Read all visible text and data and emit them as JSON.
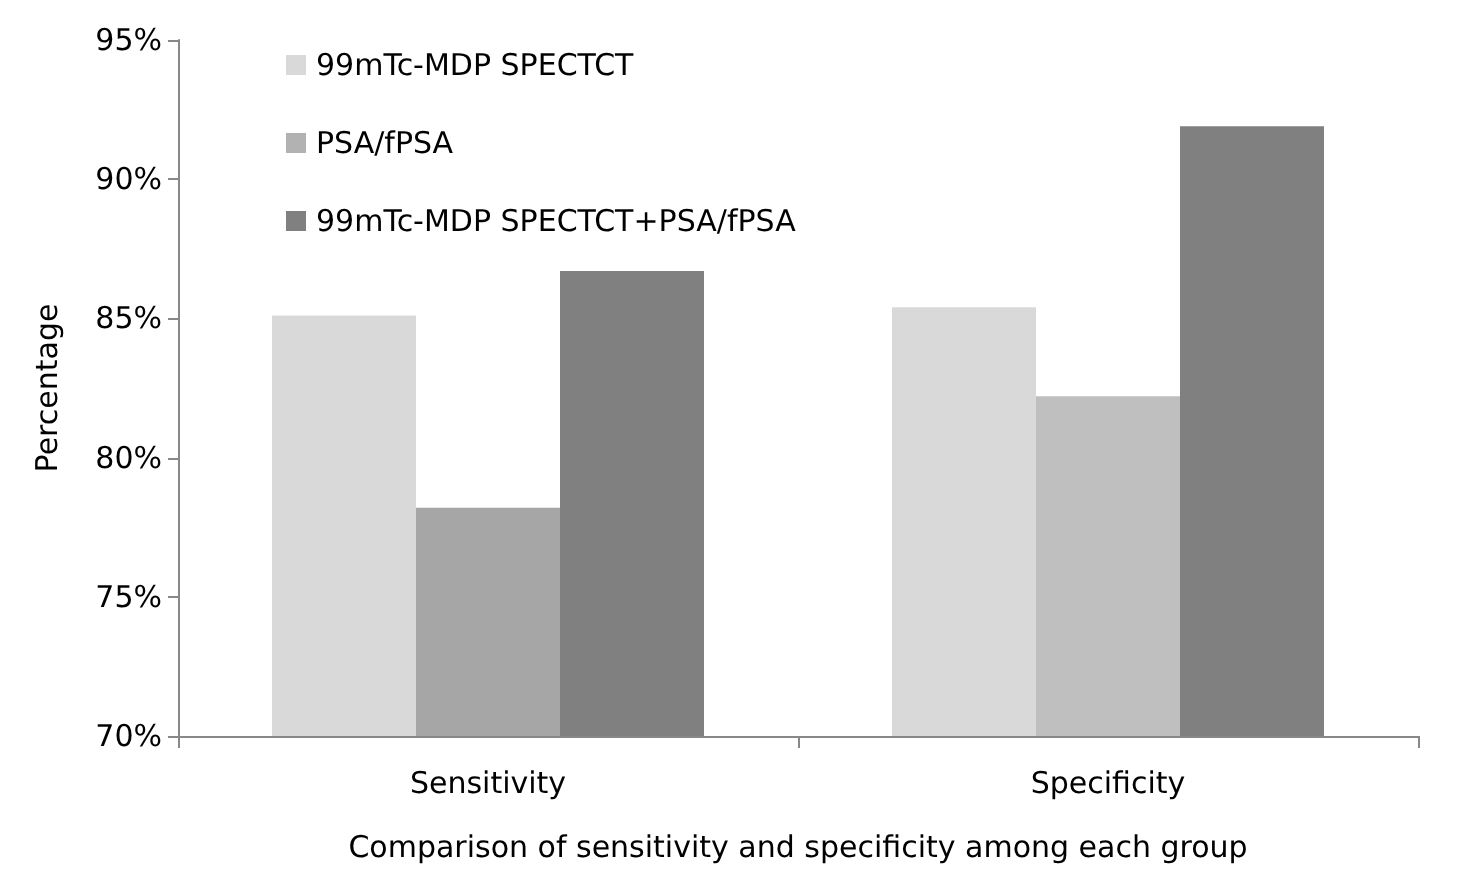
{
  "chart_data": {
    "type": "bar",
    "xlabel": "Comparison of sensitivity and specificity among each group",
    "ylabel": "Percentage",
    "categories": [
      "Sensitivity",
      "Specificity"
    ],
    "series": [
      {
        "name": "99mTc-MDP SPECTCT",
        "color": "#d9d9d9",
        "values": [
          85.1,
          85.4
        ]
      },
      {
        "name": "PSA/fPSA",
        "color": "#b2b2b2",
        "colors": [
          "#a6a6a6",
          "#bfbfbf"
        ],
        "values": [
          78.2,
          82.2
        ]
      },
      {
        "name": "99mTc-MDP SPECTCT+PSA/fPSA",
        "color": "#808080",
        "values": [
          86.7,
          91.9
        ]
      }
    ],
    "ylim": [
      70,
      95
    ],
    "yticks": [
      {
        "value": 70,
        "label": "70%"
      },
      {
        "value": 75,
        "label": "75%"
      },
      {
        "value": 80,
        "label": "80%"
      },
      {
        "value": 85,
        "label": "85%"
      },
      {
        "value": 90,
        "label": "90%"
      },
      {
        "value": 95,
        "label": "95%"
      }
    ],
    "grid": false,
    "legend": "top left"
  }
}
